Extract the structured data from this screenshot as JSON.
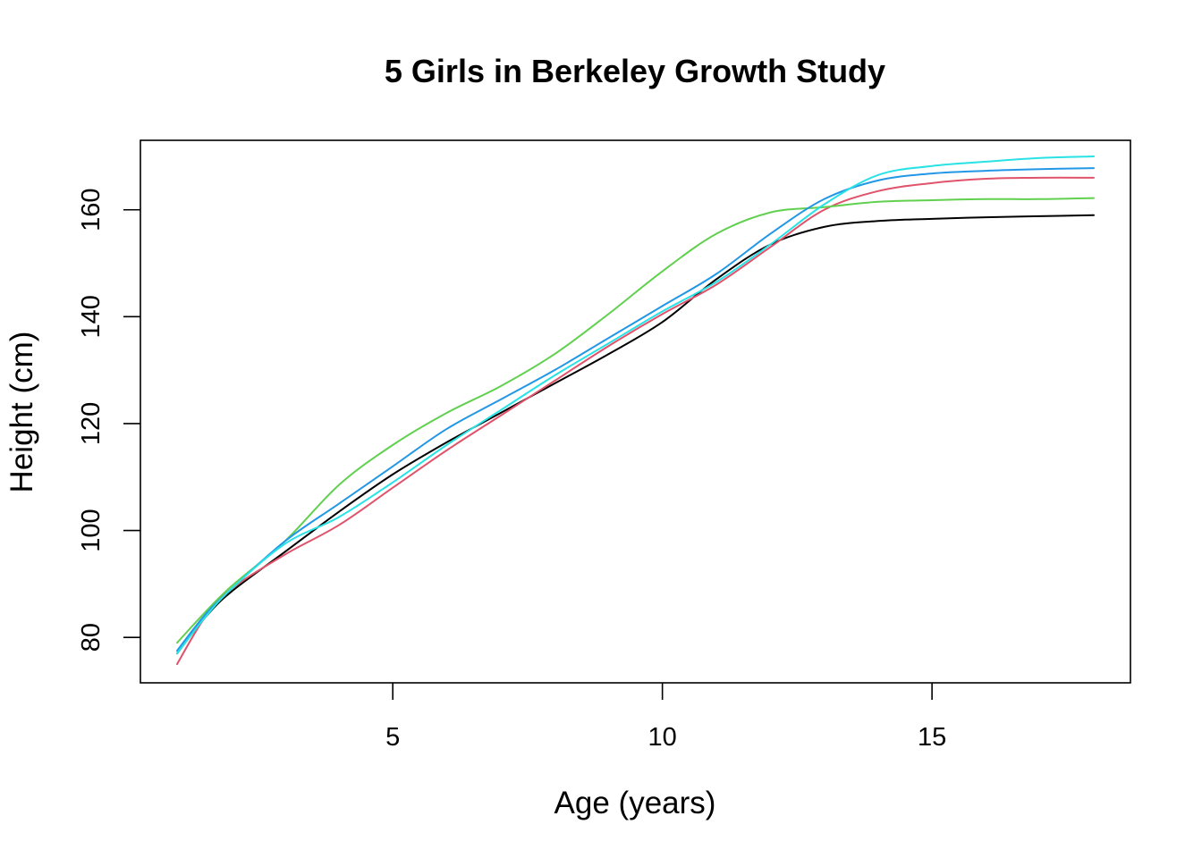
{
  "chart_data": {
    "type": "line",
    "title": "5 Girls in Berkeley Growth Study",
    "xlabel": "Age (years)",
    "ylabel": "Height (cm)",
    "xlim": [
      0.32,
      18.68
    ],
    "ylim": [
      71.5,
      173.0
    ],
    "xticks": [
      5,
      10,
      15
    ],
    "yticks": [
      80,
      100,
      120,
      140,
      160
    ],
    "grid": false,
    "legend": "none",
    "x": [
      1,
      1.5,
      2,
      3,
      4,
      5,
      6,
      7,
      8,
      9,
      10,
      11,
      12,
      13,
      14,
      15,
      16,
      17,
      18
    ],
    "series": [
      {
        "color": "#000000",
        "values": [
          77.0,
          83.5,
          88.5,
          96.0,
          103.5,
          110.5,
          116.5,
          122.0,
          127.5,
          133.0,
          139.0,
          147.0,
          153.5,
          156.8,
          157.9,
          158.3,
          158.6,
          158.8,
          159.0
        ]
      },
      {
        "color": "#DF536B",
        "values": [
          75.0,
          83.5,
          89.0,
          95.5,
          101.0,
          108.0,
          115.0,
          121.5,
          128.0,
          134.5,
          140.5,
          146.0,
          153.0,
          160.0,
          163.5,
          165.0,
          165.8,
          166.0,
          166.0
        ]
      },
      {
        "color": "#61D04F",
        "values": [
          79.0,
          84.5,
          89.5,
          98.0,
          108.5,
          116.0,
          122.0,
          127.0,
          133.0,
          140.5,
          148.5,
          155.5,
          159.5,
          160.5,
          161.5,
          161.8,
          162.0,
          162.0,
          162.2
        ]
      },
      {
        "color": "#2297E6",
        "values": [
          77.5,
          84.0,
          89.0,
          98.0,
          105.0,
          112.0,
          119.0,
          124.5,
          130.0,
          136.0,
          142.0,
          148.0,
          155.5,
          162.0,
          165.5,
          166.8,
          167.3,
          167.6,
          167.8
        ]
      },
      {
        "color": "#28E2E5",
        "values": [
          77.0,
          83.5,
          89.0,
          97.5,
          102.5,
          109.0,
          116.0,
          122.5,
          129.0,
          135.0,
          141.0,
          146.5,
          153.5,
          161.0,
          166.5,
          168.2,
          169.0,
          169.7,
          170.0
        ]
      }
    ]
  }
}
